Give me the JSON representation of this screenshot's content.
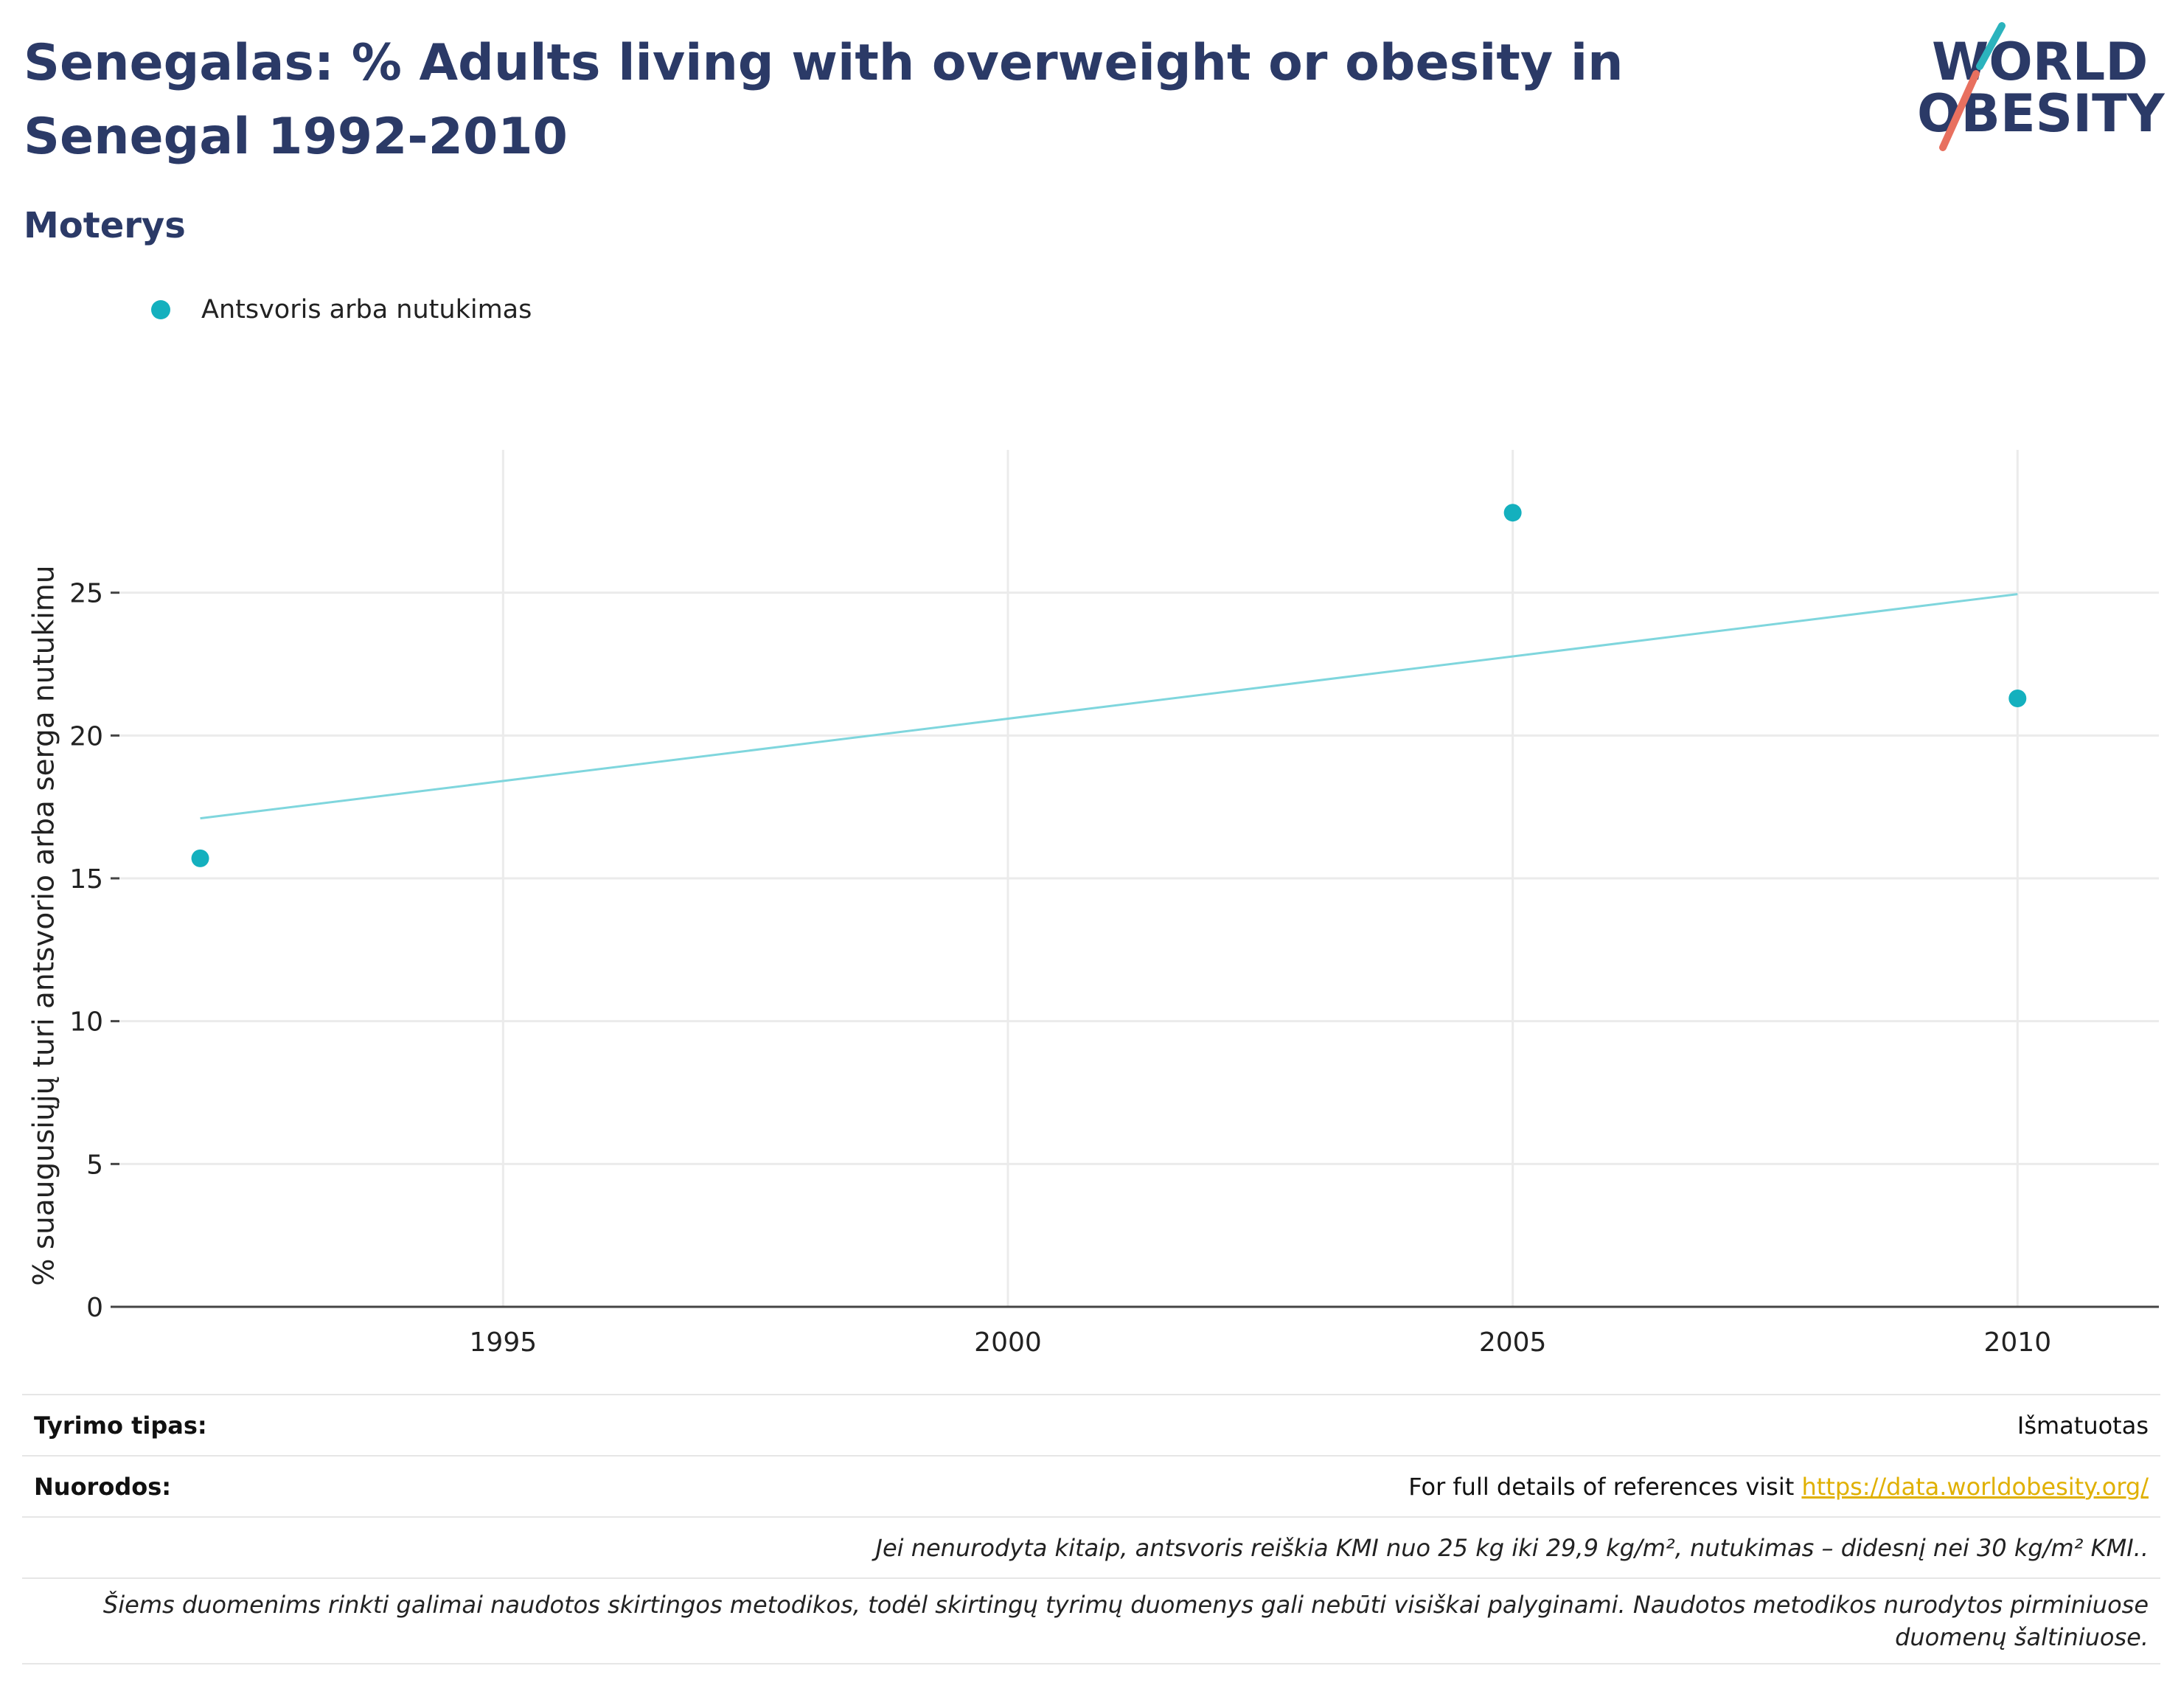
{
  "header": {
    "title": "Senegalas: % Adults living with overweight or obesity in Senegal 1992-2010",
    "subtitle": "Moterys"
  },
  "logo": {
    "line1": "WORLD",
    "line2": "OBESITY"
  },
  "legend": {
    "label": "Antsvoris arba nutukimas",
    "color": "#14b0be"
  },
  "chart_data": {
    "type": "scatter",
    "title": "Senegalas: % Adults living with overweight or obesity in Senegal 1992-2010",
    "subtitle": "Moterys",
    "xlabel": "",
    "ylabel": "% suaugusiųjų turi antsvorio arba serga nutukimu",
    "xlim": [
      1991.2,
      2011.4
    ],
    "ylim": [
      0,
      30
    ],
    "xticks": [
      1995,
      2000,
      2005,
      2010
    ],
    "yticks": [
      0,
      5,
      10,
      15,
      20,
      25
    ],
    "grid": true,
    "legend_position": "top-left",
    "series": [
      {
        "name": "Antsvoris arba nutukimas",
        "color": "#14b0be",
        "x": [
          1992,
          2005,
          2010
        ],
        "y": [
          15.7,
          27.8,
          21.3
        ]
      }
    ],
    "trendline": {
      "color": "#7fd6dd",
      "x": [
        1992,
        2010
      ],
      "y": [
        17.1,
        24.95
      ]
    }
  },
  "footer": {
    "survey_type_label": "Tyrimo tipas:",
    "survey_type_value": "Išmatuotas",
    "references_label": "Nuorodos:",
    "references_text": "For full details of references visit ",
    "references_link": "https://data.worldobesity.org/",
    "note1": "Jei nenurodyta kitaip, antsvoris reiškia KMI nuo 25 kg iki 29,9 kg/m², nutukimas – didesnį nei 30 kg/m² KMI..",
    "note2": "Šiems duomenims rinkti galimai naudotos skirtingos metodikos, todėl skirtingų tyrimų duomenys gali nebūti visiškai palyginami. Naudotos metodikos nurodytos pirminiuose duomenų šaltiniuose."
  },
  "colors": {
    "title": "#2b3a67",
    "accent_teal": "#14b0be",
    "accent_red": "#e8705f",
    "link": "#e0b000"
  }
}
